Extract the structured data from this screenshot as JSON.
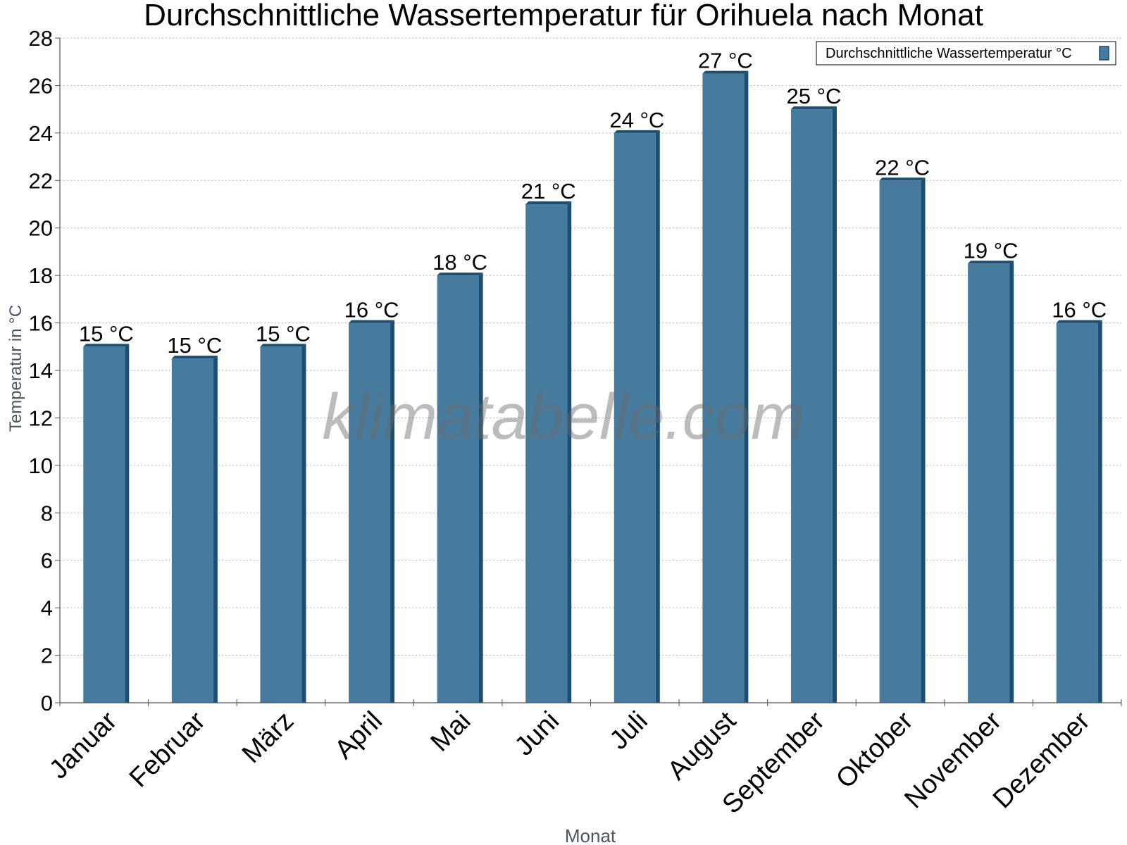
{
  "chart_data": {
    "type": "bar",
    "title": "Durchschnittliche Wassertemperatur für Orihuela nach Monat",
    "xlabel": "Monat",
    "ylabel": "Temperatur in °C",
    "ylim": [
      0,
      28
    ],
    "yticks": [
      0,
      2,
      4,
      6,
      8,
      10,
      12,
      14,
      16,
      18,
      20,
      22,
      24,
      26,
      28
    ],
    "grid": true,
    "legend_position": "top-right",
    "categories": [
      "Januar",
      "Februar",
      "März",
      "April",
      "Mai",
      "Juni",
      "Juli",
      "August",
      "September",
      "Oktober",
      "November",
      "Dezember"
    ],
    "series": [
      {
        "name": "Durchschnittliche Wassertemperatur °C",
        "values": [
          15,
          14.5,
          15,
          16,
          18,
          21,
          24,
          26.5,
          25,
          22,
          18.5,
          16
        ],
        "labels": [
          "15 °C",
          "15 °C",
          "15 °C",
          "16 °C",
          "18 °C",
          "21 °C",
          "24 °C",
          "27 °C",
          "25 °C",
          "22 °C",
          "19 °C",
          "16 °C"
        ]
      }
    ],
    "colors": {
      "bar": "#467b9e",
      "bar_side": "#1d4e72",
      "bar_top": "#1d4e72"
    },
    "watermark": "klimatabelle.com"
  }
}
